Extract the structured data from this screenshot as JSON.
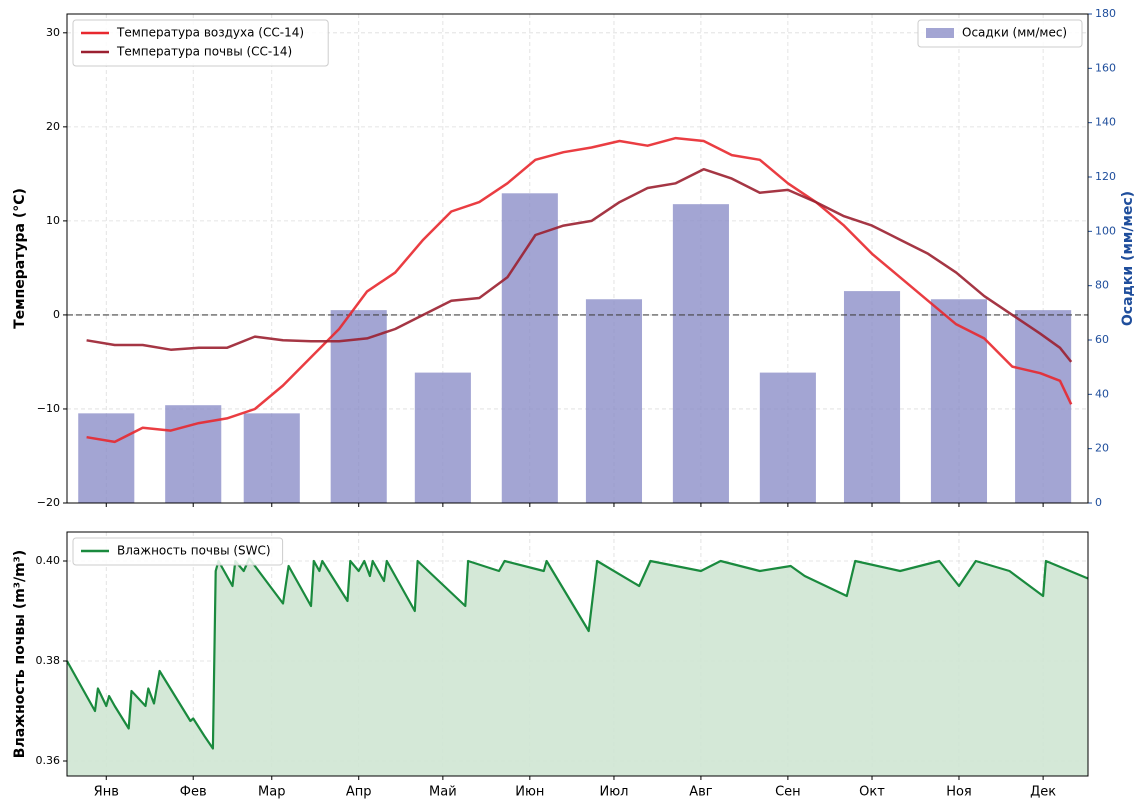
{
  "chart_data": [
    {
      "type": "combo",
      "ylabel": "Температура (°C)",
      "y2label": "Осадки (мм/мес)",
      "xlim": [
        1,
        365
      ],
      "xticks": [
        15,
        46,
        74,
        105,
        135,
        166,
        196,
        227,
        258,
        288,
        319,
        349
      ],
      "ylim": [
        -20,
        32
      ],
      "yticks": [
        {
          "value": -20,
          "label": "−20"
        },
        {
          "value": -10,
          "label": "−10"
        },
        0,
        10,
        20,
        30
      ],
      "y2lim": [
        0,
        180
      ],
      "y2ticks": [
        0,
        20,
        40,
        60,
        80,
        100,
        120,
        140,
        160,
        180
      ],
      "reference_line": 0,
      "grid": true,
      "x": [
        8,
        18,
        28,
        38,
        48,
        58,
        68,
        78,
        88,
        98,
        108,
        118,
        128,
        138,
        148,
        158,
        168,
        178,
        188,
        198,
        208,
        218,
        228,
        238,
        248,
        258,
        268,
        278,
        288,
        298,
        308,
        318,
        328,
        338,
        348,
        355,
        359
      ],
      "series": [
        {
          "name": "Температура воздуха (СС-14)",
          "color": "#e8282e",
          "values": [
            -13,
            -13.5,
            -12,
            -12.3,
            -11.5,
            -11,
            -10,
            -7.5,
            -4.5,
            -1.5,
            2.5,
            4.5,
            8,
            11,
            12,
            14,
            16.5,
            17.3,
            17.8,
            18.5,
            18,
            18.8,
            18.5,
            17,
            16.5,
            14,
            12,
            9.5,
            6.5,
            4,
            1.5,
            -1,
            -2.5,
            -5.5,
            -6.2,
            -7,
            -9.5
          ]
        },
        {
          "name": "Температура почвы (СС-14)",
          "color": "#9b2030",
          "values": [
            -2.7,
            -3.2,
            -3.2,
            -3.7,
            -3.5,
            -3.5,
            -2.3,
            -2.7,
            -2.8,
            -2.8,
            -2.5,
            -1.5,
            0,
            1.5,
            1.8,
            4,
            8.5,
            9.5,
            10,
            12,
            13.5,
            14,
            15.5,
            14.5,
            13,
            13.3,
            12,
            10.5,
            9.5,
            8,
            6.5,
            4.5,
            2,
            0,
            -2,
            -3.5,
            -5
          ]
        }
      ],
      "bars": {
        "name": "Осадки (мм/мес)",
        "color": "#8c8fc8",
        "axis": "y2",
        "x": [
          15,
          46,
          74,
          105,
          135,
          166,
          196,
          227,
          258,
          288,
          319,
          349
        ],
        "values": [
          33,
          36,
          33,
          71,
          48,
          114,
          75,
          110,
          48,
          78,
          75,
          71
        ]
      },
      "legend": [
        "upper left",
        "upper right"
      ]
    },
    {
      "type": "area",
      "ylabel": "Влажность почвы (m³/m³)",
      "xlim": [
        1,
        365
      ],
      "xticks": [
        {
          "value": 15,
          "label": "Янв"
        },
        {
          "value": 46,
          "label": "Фев"
        },
        {
          "value": 74,
          "label": "Мар"
        },
        {
          "value": 105,
          "label": "Апр"
        },
        {
          "value": 135,
          "label": "Май"
        },
        {
          "value": 166,
          "label": "Июн"
        },
        {
          "value": 196,
          "label": "Июл"
        },
        {
          "value": 227,
          "label": "Авг"
        },
        {
          "value": 258,
          "label": "Сен"
        },
        {
          "value": 288,
          "label": "Окт"
        },
        {
          "value": 319,
          "label": "Ноя"
        },
        {
          "value": 349,
          "label": "Дек"
        }
      ],
      "ylim": [
        0.357,
        0.4058
      ],
      "yticks": [
        0.36,
        0.38,
        {
          "value": 0.4,
          "label": "0.40"
        }
      ],
      "grid": true,
      "x": [
        1,
        11,
        12,
        15,
        16,
        18,
        23,
        24,
        29,
        30,
        32,
        34,
        45,
        46,
        50,
        53,
        54,
        55,
        60,
        61,
        64,
        66,
        76,
        78,
        80,
        88,
        89,
        91,
        92,
        101,
        102,
        105,
        107,
        109,
        110,
        114,
        115,
        125,
        126,
        143,
        144,
        155,
        157,
        171,
        172,
        187,
        190,
        205,
        209,
        227,
        234,
        248,
        259,
        264,
        279,
        282,
        298,
        312,
        319,
        325,
        337,
        349,
        350,
        365
      ],
      "series": [
        {
          "name": "Влажность почвы (SWC)",
          "color": "#1a8a3e",
          "fill": "#cfe6d3",
          "values": [
            0.38,
            0.37,
            0.3745,
            0.371,
            0.373,
            0.371,
            0.3665,
            0.374,
            0.371,
            0.3745,
            0.3715,
            0.378,
            0.368,
            0.3685,
            0.365,
            0.3625,
            0.398,
            0.4,
            0.395,
            0.4,
            0.398,
            0.4005,
            0.393,
            0.3915,
            0.399,
            0.391,
            0.4,
            0.398,
            0.4,
            0.392,
            0.4,
            0.398,
            0.4,
            0.397,
            0.4,
            0.396,
            0.4,
            0.39,
            0.4,
            0.391,
            0.4,
            0.398,
            0.4,
            0.398,
            0.4,
            0.386,
            0.4,
            0.395,
            0.4,
            0.398,
            0.4,
            0.398,
            0.399,
            0.397,
            0.393,
            0.4,
            0.398,
            0.4,
            0.395,
            0.4,
            0.398,
            0.393,
            0.4,
            0.3965
          ]
        }
      ],
      "legend": "upper left"
    }
  ]
}
